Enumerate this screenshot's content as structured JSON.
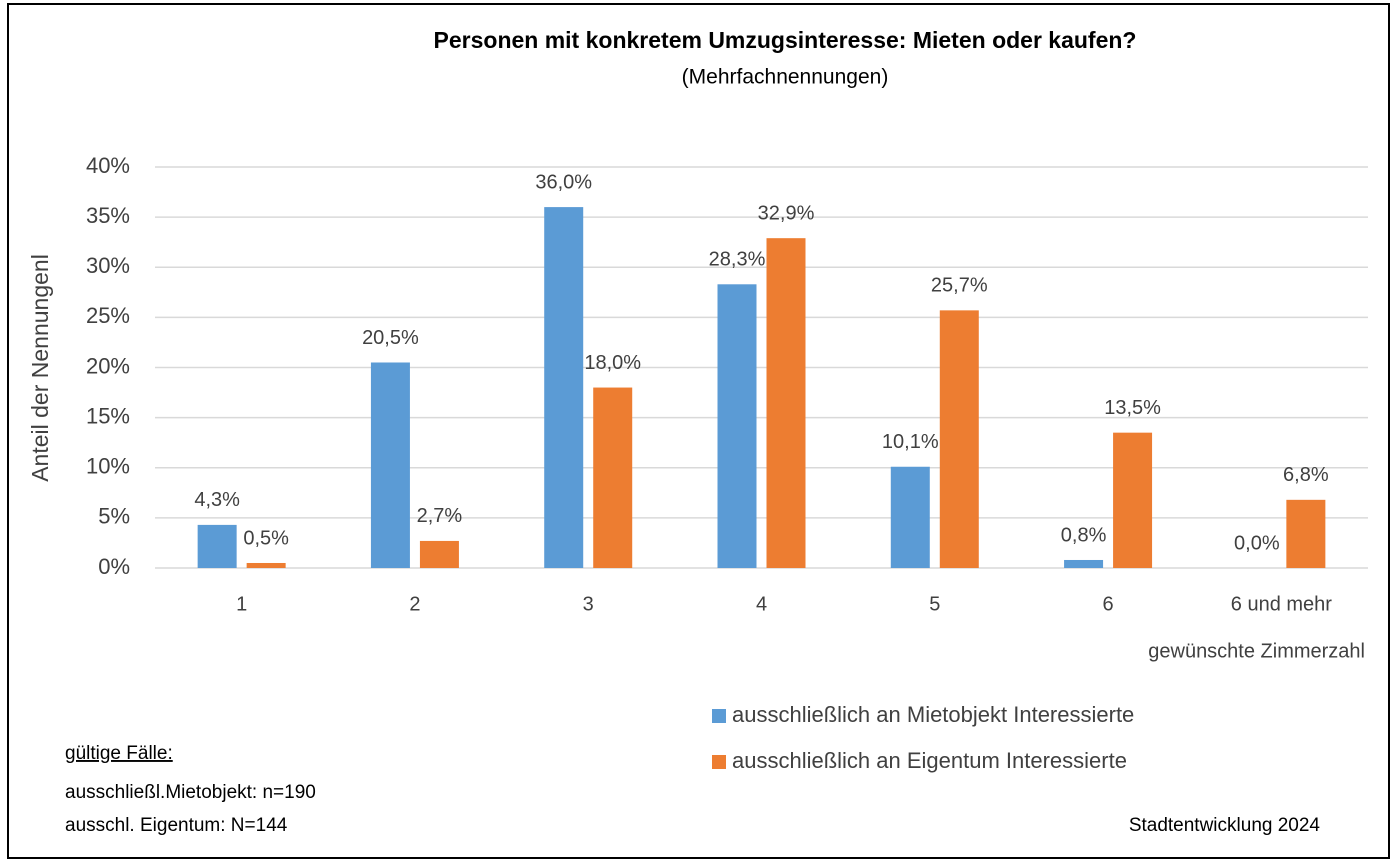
{
  "chart_data": {
    "type": "bar",
    "title": "Personen mit konkretem Umzugsinteresse: Mieten oder kaufen?",
    "subtitle": "(Mehrfachnennungen)",
    "y_label": "Anteil der Nennungenl",
    "x_label": "gewünschte Zimmerzahl",
    "categories": [
      "1",
      "2",
      "3",
      "4",
      "5",
      "6",
      "6 und mehr"
    ],
    "series": [
      {
        "name": "ausschließlich an Mietobjekt Interessierte",
        "color": "#5b9bd5",
        "values": [
          4.3,
          20.5,
          36.0,
          28.3,
          10.1,
          0.8,
          0.0
        ],
        "value_labels": [
          "4,3%",
          "20,5%",
          "36,0%",
          "28,3%",
          "10,1%",
          "0,8%",
          "0,0%"
        ]
      },
      {
        "name": "ausschließlich an Eigentum Interessierte",
        "color": "#ed7d31",
        "values": [
          0.5,
          2.7,
          18.0,
          32.9,
          25.7,
          13.5,
          6.8
        ],
        "value_labels": [
          "0,5%",
          "2,7%",
          "18,0%",
          "32,9%",
          "25,7%",
          "13,5%",
          "6,8%"
        ]
      }
    ],
    "ylim": [
      0,
      40
    ],
    "yticks": [
      {
        "value": 0,
        "label": "0%"
      },
      {
        "value": 5,
        "label": "5%"
      },
      {
        "value": 10,
        "label": "10%"
      },
      {
        "value": 15,
        "label": "15%"
      },
      {
        "value": 20,
        "label": "20%"
      },
      {
        "value": 25,
        "label": "25%"
      },
      {
        "value": 30,
        "label": "30%"
      },
      {
        "value": 35,
        "label": "35%"
      },
      {
        "value": 40,
        "label": "40%"
      }
    ],
    "grid": true,
    "notes": [
      "gültige Fälle:",
      "ausschließl.Mietobjekt: n=190",
      "ausschl. Eigentum:  N=144"
    ],
    "source": "Stadtentwicklung 2024"
  }
}
